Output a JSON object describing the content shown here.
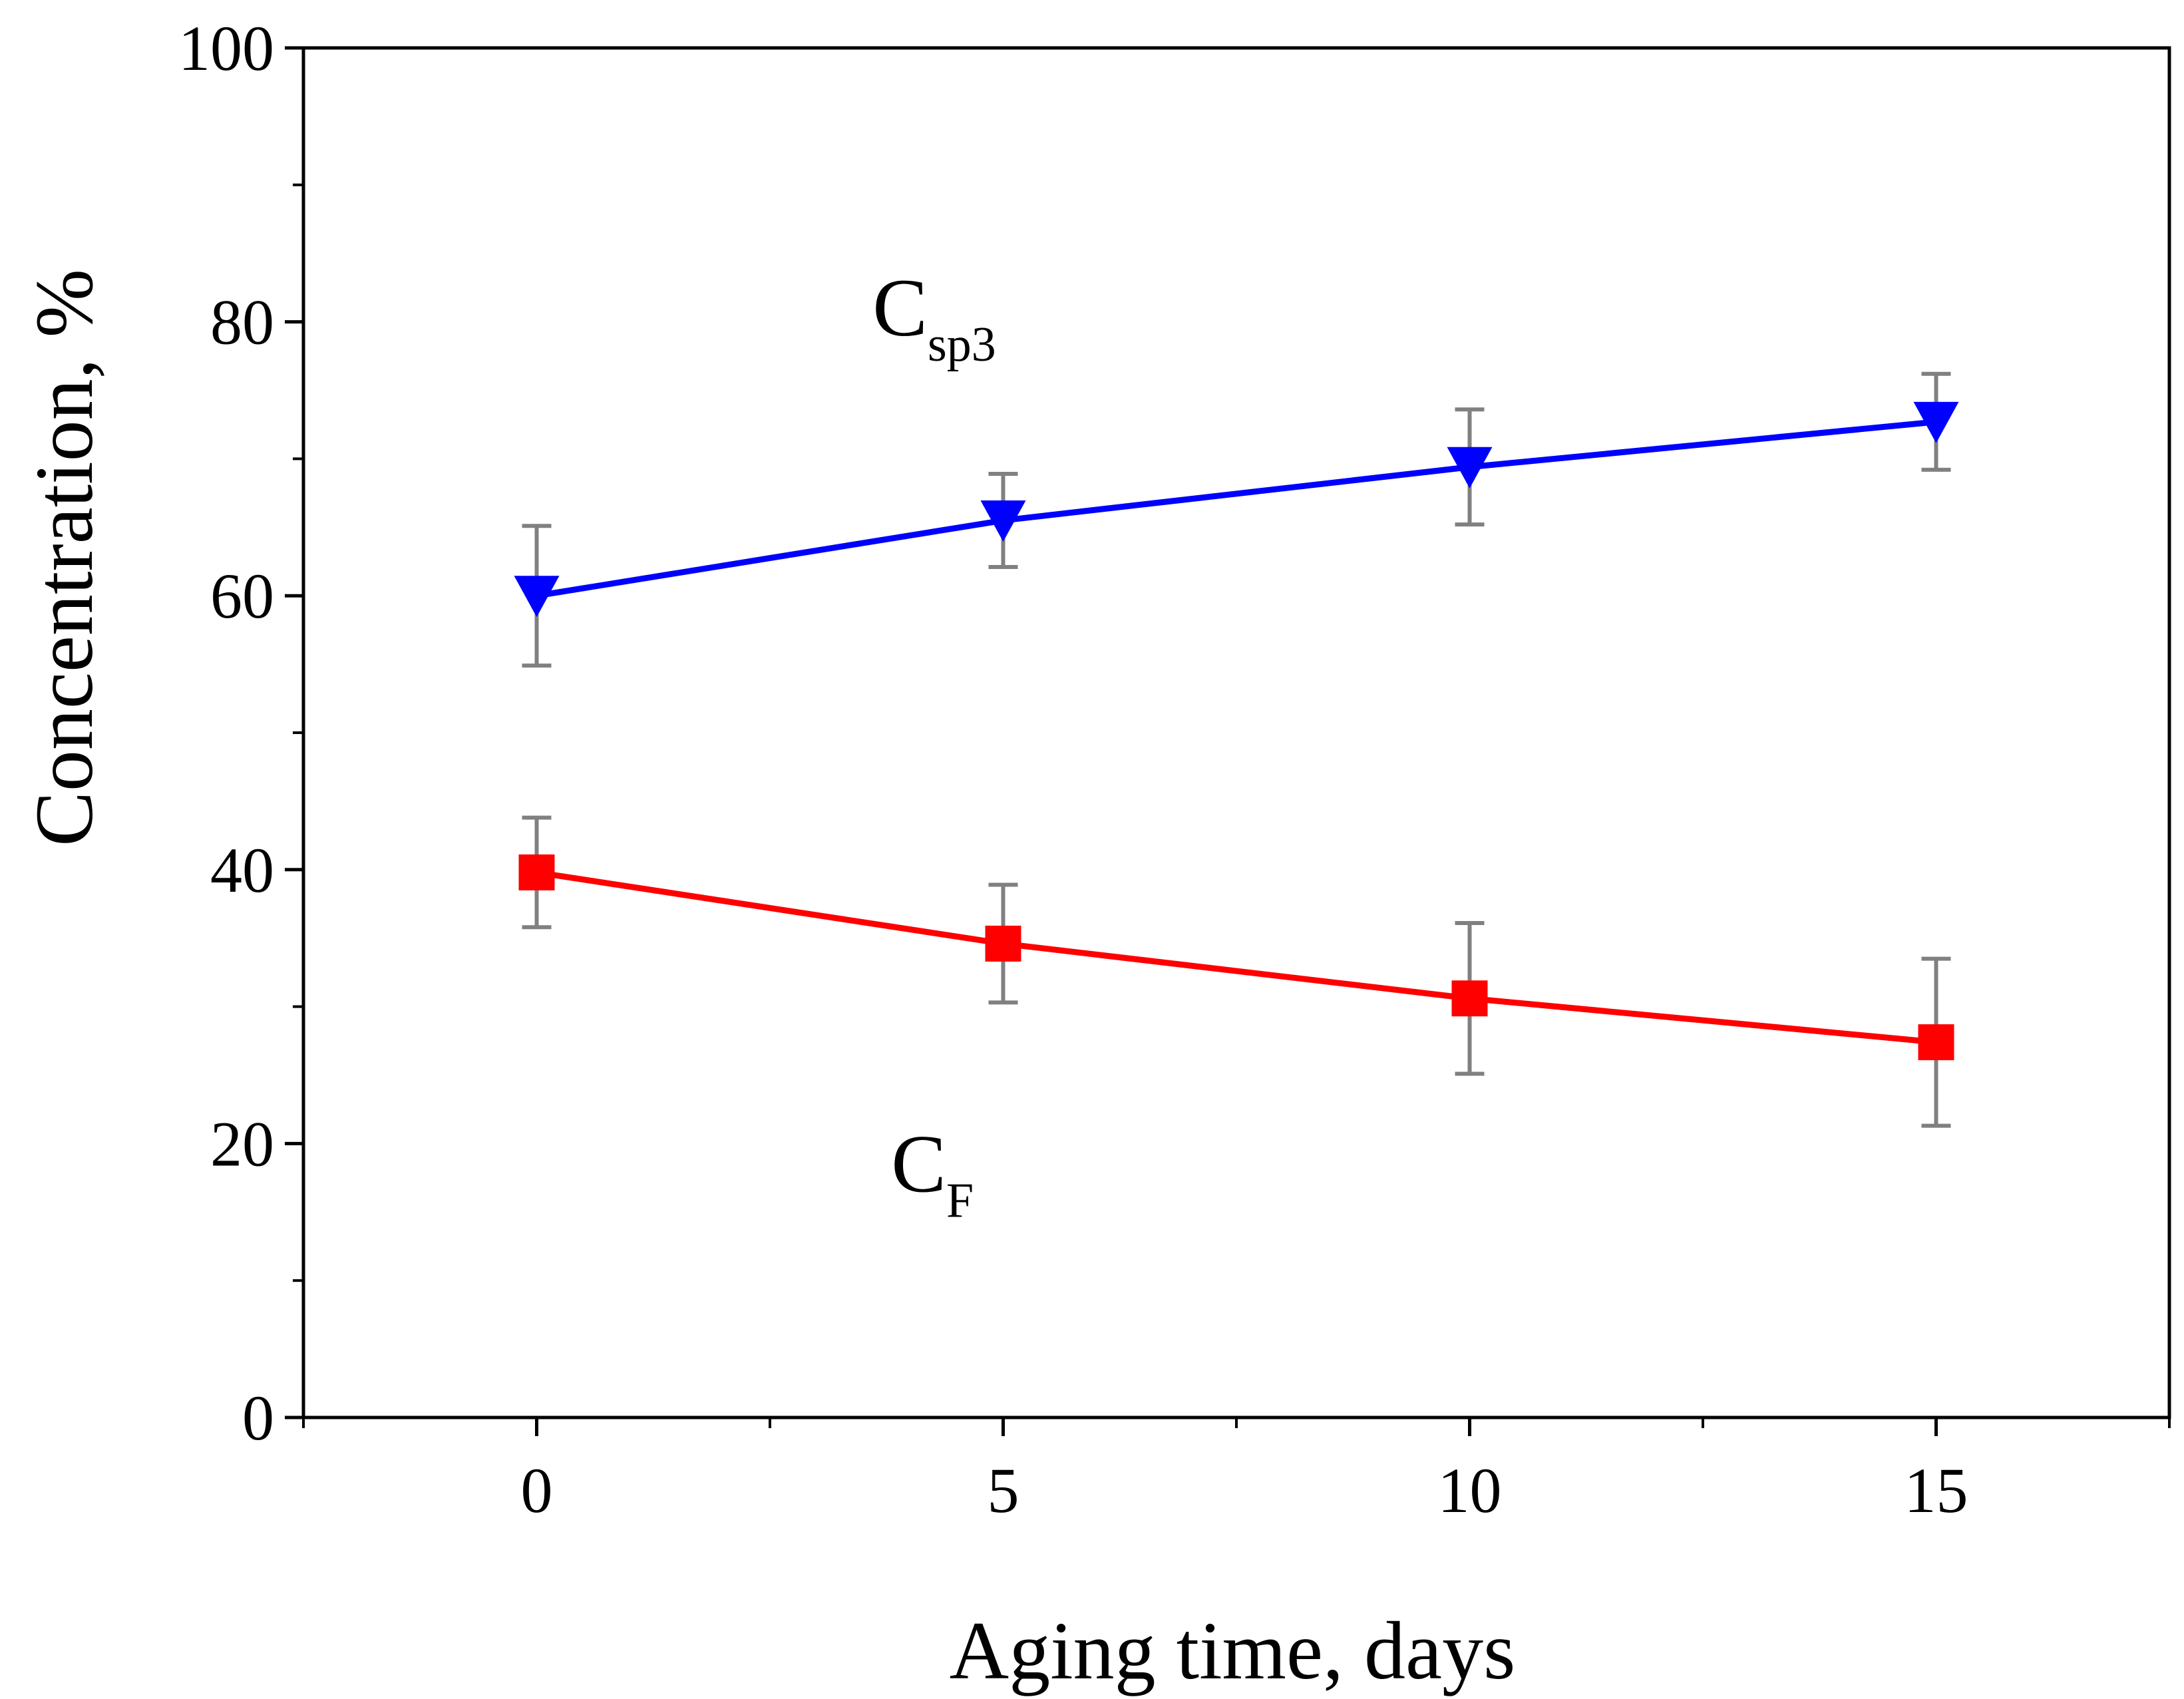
{
  "chart_data": {
    "type": "line",
    "title": "",
    "xlabel": "Aging time, days",
    "ylabel": "Concentration, %",
    "xlim": [
      -2.5,
      17.5
    ],
    "ylim": [
      0,
      100
    ],
    "xticks": [
      0,
      5,
      10,
      15
    ],
    "xticks_minor": [
      -2.5,
      2.5,
      7.5,
      12.5,
      17.5
    ],
    "yticks": [
      0,
      20,
      40,
      60,
      80,
      100
    ],
    "yticks_minor": [
      10,
      30,
      50,
      70,
      90
    ],
    "grid": false,
    "legend": "none",
    "series": [
      {
        "name": "Csp3",
        "label_main": "C",
        "label_sub": "sp3",
        "color": "#0000ff",
        "marker": "triangle-down",
        "x": [
          0,
          5,
          10,
          15
        ],
        "y": [
          60.0,
          65.5,
          69.4,
          72.7
        ],
        "error": [
          5.1,
          3.4,
          4.2,
          3.5
        ],
        "label_at": [
          3.6,
          79
        ]
      },
      {
        "name": "CF",
        "label_main": "C",
        "label_sub": "F",
        "color": "#ff0000",
        "marker": "square",
        "x": [
          0,
          5,
          10,
          15
        ],
        "y": [
          39.8,
          34.6,
          30.6,
          27.4
        ],
        "error": [
          4.0,
          4.3,
          5.5,
          6.1
        ],
        "label_at": [
          3.8,
          16.5
        ]
      }
    ],
    "errorbar_color": "#808080"
  }
}
